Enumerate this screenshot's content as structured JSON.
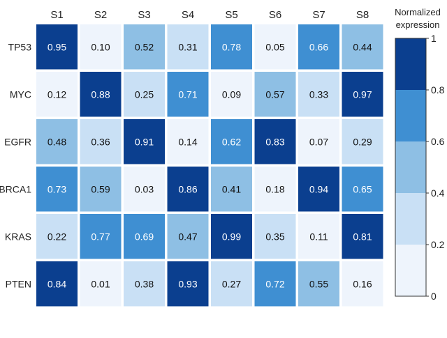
{
  "chart_data": {
    "type": "heatmap",
    "columns": [
      "S1",
      "S2",
      "S3",
      "S4",
      "S5",
      "S6",
      "S7",
      "S8"
    ],
    "rows": [
      "TP53",
      "MYC",
      "EGFR",
      "BRCA1",
      "KRAS",
      "PTEN"
    ],
    "values": [
      [
        0.95,
        0.1,
        0.52,
        0.31,
        0.78,
        0.05,
        0.66,
        0.44
      ],
      [
        0.12,
        0.88,
        0.25,
        0.71,
        0.09,
        0.57,
        0.33,
        0.97
      ],
      [
        0.48,
        0.36,
        0.91,
        0.14,
        0.62,
        0.83,
        0.07,
        0.29
      ],
      [
        0.73,
        0.59,
        0.03,
        0.86,
        0.41,
        0.18,
        0.94,
        0.65
      ],
      [
        0.22,
        0.77,
        0.69,
        0.47,
        0.99,
        0.35,
        0.11,
        0.81
      ],
      [
        0.84,
        0.01,
        0.38,
        0.93,
        0.27,
        0.72,
        0.55,
        0.16
      ]
    ],
    "value_labels": [
      [
        "0.95",
        "0.10",
        "0.52",
        "0.31",
        "0.78",
        "0.05",
        "0.66",
        "0.44"
      ],
      [
        "0.12",
        "0.88",
        "0.25",
        "0.71",
        "0.09",
        "0.57",
        "0.33",
        "0.97"
      ],
      [
        "0.48",
        "0.36",
        "0.91",
        "0.14",
        "0.62",
        "0.83",
        "0.07",
        "0.29"
      ],
      [
        "0.73",
        "0.59",
        "0.03",
        "0.86",
        "0.41",
        "0.18",
        "0.94",
        "0.65"
      ],
      [
        "0.22",
        "0.77",
        "0.69",
        "0.47",
        "0.99",
        "0.35",
        "0.11",
        "0.81"
      ],
      [
        "0.84",
        "0.01",
        "0.38",
        "0.93",
        "0.27",
        "0.72",
        "0.55",
        "0.16"
      ]
    ],
    "colorbar": {
      "title_lines": [
        "Normalized",
        "expression"
      ],
      "range": [
        0,
        1
      ],
      "ticks": [
        0,
        0.2,
        0.4,
        0.6,
        0.8,
        1
      ],
      "tick_labels": [
        "0",
        "0.2",
        "0.4",
        "0.6",
        "0.8",
        "1"
      ],
      "bins": [
        {
          "from": 0.0,
          "to": 0.2,
          "color": "#eef4fc"
        },
        {
          "from": 0.2,
          "to": 0.4,
          "color": "#c9e0f5"
        },
        {
          "from": 0.4,
          "to": 0.6,
          "color": "#8ebfe4"
        },
        {
          "from": 0.6,
          "to": 0.8,
          "color": "#3f8fd2"
        },
        {
          "from": 0.8,
          "to": 1.0,
          "color": "#0b3f8f"
        }
      ]
    },
    "grid": false,
    "legend_position": "right"
  }
}
